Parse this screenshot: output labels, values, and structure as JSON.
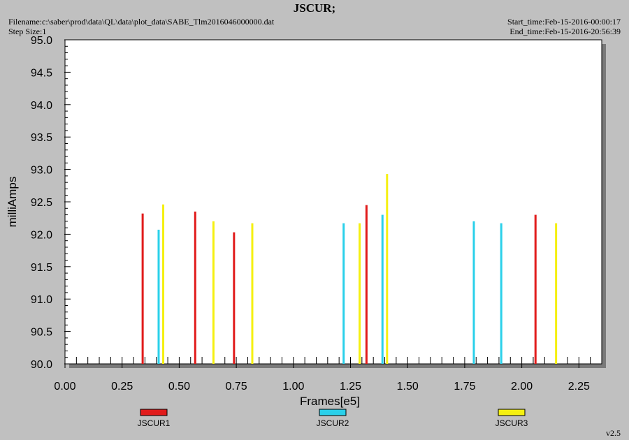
{
  "header": {
    "title": "JSCUR;",
    "filename": "Filename:c:\\saber\\prod\\data\\QL\\data\\plot_data\\SABE_Tlm2016046000000.dat",
    "step_size": "Step Size:1",
    "start_time": "Start_time:Feb-15-2016-00:00:17",
    "end_time": "End_time:Feb-15-2016-20:56:39"
  },
  "version": "v2.5",
  "chart_data": {
    "type": "bar",
    "title": "JSCUR;",
    "xlabel": "Frames[e5]",
    "ylabel": "milliAmps",
    "xlim": [
      0.0,
      2.35
    ],
    "ylim": [
      90.0,
      95.0
    ],
    "xticks": [
      "0.00",
      "0.25",
      "0.50",
      "0.75",
      "1.00",
      "1.25",
      "1.50",
      "1.75",
      "2.00",
      "2.25"
    ],
    "yticks": [
      "90.0",
      "90.5",
      "91.0",
      "91.5",
      "92.0",
      "92.5",
      "93.0",
      "93.5",
      "94.0",
      "94.5",
      "95.0"
    ],
    "grid": false,
    "legend_position": "bottom",
    "series": [
      {
        "name": "JSCUR1",
        "color": "#e11b1b",
        "points": [
          {
            "x": 0.34,
            "y": 92.32
          },
          {
            "x": 0.57,
            "y": 92.35
          },
          {
            "x": 0.74,
            "y": 92.03
          },
          {
            "x": 1.32,
            "y": 92.45
          },
          {
            "x": 2.06,
            "y": 92.3
          }
        ]
      },
      {
        "name": "JSCUR2",
        "color": "#2ad0ea",
        "points": [
          {
            "x": 0.41,
            "y": 92.07
          },
          {
            "x": 1.22,
            "y": 92.17
          },
          {
            "x": 1.39,
            "y": 92.3
          },
          {
            "x": 1.79,
            "y": 92.2
          },
          {
            "x": 1.91,
            "y": 92.17
          }
        ]
      },
      {
        "name": "JSCUR3",
        "color": "#f5f010",
        "points": [
          {
            "x": 0.43,
            "y": 92.46
          },
          {
            "x": 0.65,
            "y": 92.2
          },
          {
            "x": 0.82,
            "y": 92.17
          },
          {
            "x": 1.29,
            "y": 92.17
          },
          {
            "x": 1.41,
            "y": 92.93
          },
          {
            "x": 2.15,
            "y": 92.17
          }
        ]
      }
    ]
  }
}
